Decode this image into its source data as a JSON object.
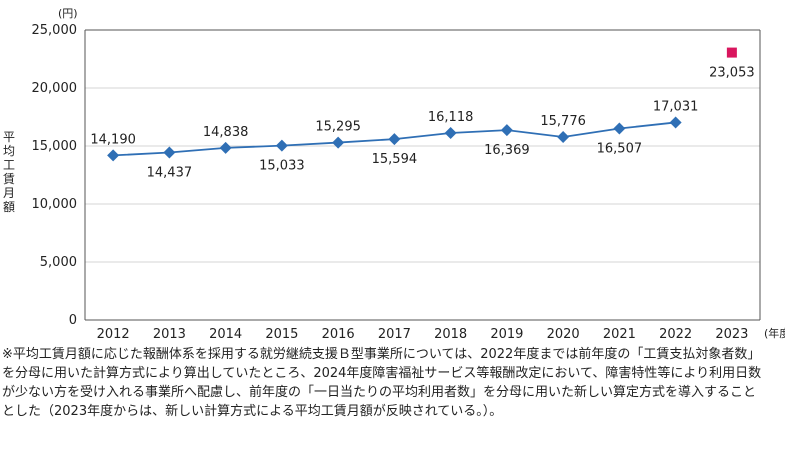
{
  "chart_data": {
    "type": "line",
    "y_unit": "(円)",
    "x_unit": "(年度)",
    "ylabel": "平均工賃月額",
    "ylim": [
      0,
      25000
    ],
    "yticks": [
      "0",
      "5,000",
      "10,000",
      "15,000",
      "20,000",
      "25,000"
    ],
    "ytick_values": [
      0,
      5000,
      10000,
      15000,
      20000,
      25000
    ],
    "categories": [
      "2012",
      "2013",
      "2014",
      "2015",
      "2016",
      "2017",
      "2018",
      "2019",
      "2020",
      "2021",
      "2022",
      "2023"
    ],
    "series": [
      {
        "values": [
          14190,
          14437,
          14838,
          15033,
          15295,
          15594,
          16118,
          16369,
          15776,
          16507,
          17031,
          null
        ],
        "labels": [
          "14,190",
          "14,437",
          "14,838",
          "15,033",
          "15,295",
          "15,594",
          "16,118",
          "16,369",
          "15,776",
          "16,507",
          "17,031",
          null
        ],
        "label_pos": [
          "above",
          "below",
          "above",
          "below",
          "above",
          "below",
          "above",
          "below",
          "above",
          "below",
          "above",
          null
        ],
        "color": "#2f6fb5",
        "marker": "diamond"
      },
      {
        "values": [
          null,
          null,
          null,
          null,
          null,
          null,
          null,
          null,
          null,
          null,
          null,
          23053
        ],
        "labels": [
          null,
          null,
          null,
          null,
          null,
          null,
          null,
          null,
          null,
          null,
          null,
          "23,053"
        ],
        "label_pos": [
          null,
          null,
          null,
          null,
          null,
          null,
          null,
          null,
          null,
          null,
          null,
          "below"
        ],
        "color": "#d9165e",
        "marker": "square"
      }
    ],
    "grid": true
  },
  "note": "※平均工賃月額に応じた報酬体系を採用する就労継続支援Ｂ型事業所については、2022年度までは前年度の「工賃支払対象者数」を分母に用いた計算方式により算出していたところ、2024年度障害福祉サービス等報酬改定において、障害特性等により利用日数が少ない方を受け入れる事業所へ配慮し、前年度の「一日当たりの平均利用者数」を分母に用いた新しい算定方式を導入することとした（2023年度からは、新しい計算方式による平均工賃月額が反映されている。）。"
}
